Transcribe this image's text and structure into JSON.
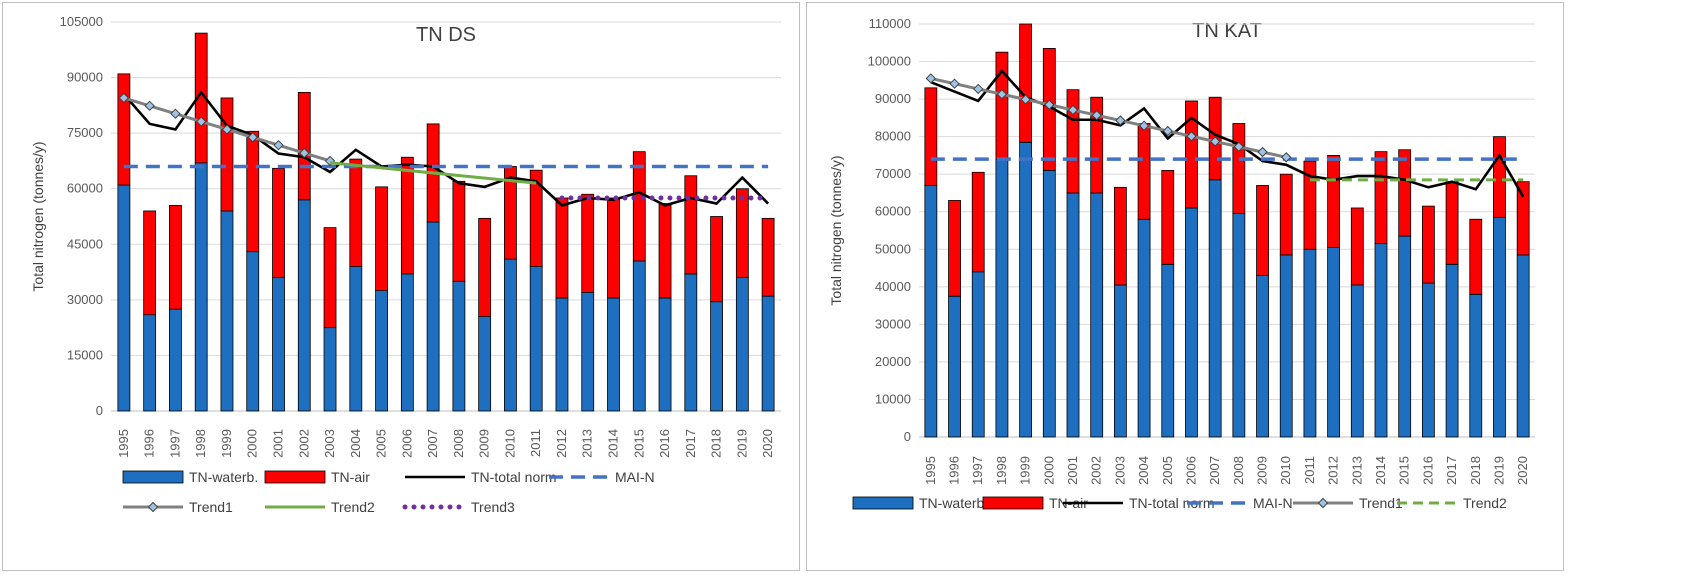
{
  "chart_data": [
    {
      "type": "bar",
      "stacked": true,
      "title": "TN DS",
      "ylabel": "Total nitrogen (tonnes/y)",
      "xlabel": "",
      "ylim": [
        0,
        105000
      ],
      "yticks": [
        0,
        15000,
        30000,
        45000,
        60000,
        75000,
        90000,
        105000
      ],
      "grid": true,
      "legend_position": "bottom",
      "categories": [
        "1995",
        "1996",
        "1997",
        "1998",
        "1999",
        "2000",
        "2001",
        "2002",
        "2003",
        "2004",
        "2005",
        "2006",
        "2007",
        "2008",
        "2009",
        "2010",
        "2011",
        "2012",
        "2013",
        "2014",
        "2015",
        "2016",
        "2017",
        "2018",
        "2019",
        "2020"
      ],
      "series": [
        {
          "name": "TN-waterb.",
          "kind": "bar",
          "color": "#1f6fc0",
          "values": [
            61000,
            26000,
            27500,
            67000,
            54000,
            43000,
            36000,
            57000,
            22500,
            39000,
            32500,
            37000,
            51000,
            35000,
            25500,
            41000,
            39000,
            30500,
            32000,
            30500,
            40500,
            30500,
            37000,
            29500,
            36000,
            31000
          ]
        },
        {
          "name": "TN-air",
          "kind": "bar",
          "color": "#ff0000",
          "values": [
            30000,
            28000,
            28000,
            35000,
            30500,
            32500,
            29500,
            29000,
            27000,
            29000,
            28000,
            31500,
            26500,
            27000,
            26500,
            25000,
            26000,
            27000,
            26500,
            27000,
            29500,
            25500,
            26500,
            23000,
            24000,
            21000
          ]
        },
        {
          "name": "TN-total norm",
          "kind": "line",
          "color": "#000000",
          "values": [
            85500,
            77500,
            76000,
            86000,
            77000,
            74500,
            69500,
            68500,
            64500,
            70500,
            66000,
            66500,
            66000,
            61500,
            60500,
            63000,
            62000,
            55500,
            57500,
            57000,
            59000,
            55500,
            57500,
            56000,
            63000,
            56000
          ]
        },
        {
          "name": "MAI-N",
          "kind": "hline",
          "color": "#4472c4",
          "value": 66000
        },
        {
          "name": "Trend1",
          "kind": "trend-markers",
          "color": "#808080",
          "x_range": [
            "1995",
            "2003"
          ],
          "start": 84500,
          "end": 67500
        },
        {
          "name": "Trend2",
          "kind": "trend",
          "color": "#70ad47",
          "x_range": [
            "2003",
            "2011"
          ],
          "start": 67000,
          "end": 61500
        },
        {
          "name": "Trend3",
          "kind": "trend-dotted",
          "color": "#7030a0",
          "x_range": [
            "2012",
            "2020"
          ],
          "start": 57500,
          "end": 57500
        }
      ]
    },
    {
      "type": "bar",
      "stacked": true,
      "title": "TN KAT",
      "ylabel": "Total nitrogen (tonnes/y)",
      "xlabel": "",
      "ylim": [
        0,
        110000
      ],
      "yticks": [
        0,
        10000,
        20000,
        30000,
        40000,
        50000,
        60000,
        70000,
        80000,
        90000,
        100000,
        110000
      ],
      "grid": true,
      "legend_position": "bottom",
      "categories": [
        "1995",
        "1996",
        "1997",
        "1998",
        "1999",
        "2000",
        "2001",
        "2002",
        "2003",
        "2004",
        "2005",
        "2006",
        "2007",
        "2008",
        "2009",
        "2010",
        "2011",
        "2012",
        "2013",
        "2014",
        "2015",
        "2016",
        "2017",
        "2018",
        "2019",
        "2020"
      ],
      "series": [
        {
          "name": "TN-waterb.",
          "kind": "bar",
          "color": "#1f6fc0",
          "values": [
            67000,
            37500,
            44000,
            74000,
            78500,
            71000,
            65000,
            65000,
            40500,
            58000,
            46000,
            61000,
            68500,
            59500,
            43000,
            48500,
            50000,
            50500,
            40500,
            51500,
            53500,
            41000,
            46000,
            38000,
            58500,
            48500
          ]
        },
        {
          "name": "TN-air",
          "kind": "bar",
          "color": "#ff0000",
          "values": [
            26000,
            25500,
            26500,
            28500,
            31500,
            32500,
            27500,
            25500,
            26000,
            25500,
            25000,
            28500,
            22000,
            24000,
            24000,
            21500,
            23500,
            24500,
            20500,
            24500,
            23000,
            20500,
            22000,
            20000,
            21500,
            19500
          ]
        },
        {
          "name": "TN-total norm",
          "kind": "line",
          "color": "#000000",
          "values": [
            94500,
            92000,
            89500,
            97500,
            90500,
            88000,
            84500,
            84500,
            83000,
            87500,
            79500,
            85000,
            80500,
            78000,
            73500,
            72500,
            69500,
            68500,
            69500,
            69500,
            68500,
            66500,
            68000,
            66000,
            75000,
            64000
          ]
        },
        {
          "name": "MAI-N",
          "kind": "hline",
          "color": "#4472c4",
          "value": 74000
        },
        {
          "name": "Trend1",
          "kind": "trend-markers",
          "color": "#808080",
          "x_range": [
            "1995",
            "2010"
          ],
          "start": 95500,
          "end": 74500
        },
        {
          "name": "Trend2",
          "kind": "trend-dashed",
          "color": "#70ad47",
          "x_range": [
            "2011",
            "2020"
          ],
          "start": 68500,
          "end": 68500
        }
      ]
    }
  ]
}
